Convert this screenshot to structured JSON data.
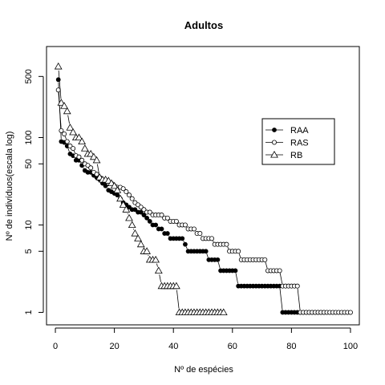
{
  "chart_data": {
    "type": "scatter",
    "title": "Adultos",
    "xlabel": "Nº de espécies",
    "ylabel": "Nº de indivíduos(escala log)",
    "y_scale": "log",
    "xlim": [
      -3,
      103
    ],
    "ylim": [
      0.72,
      1100
    ],
    "xticks": [
      0,
      20,
      40,
      60,
      80,
      100
    ],
    "yticks": [
      1,
      5,
      10,
      50,
      100,
      500
    ],
    "grid": false,
    "legend_position": "right",
    "series": [
      {
        "name": "RAA",
        "marker": "filled-circle",
        "style": "line-and-points",
        "values": [
          460,
          90,
          88,
          80,
          65,
          62,
          55,
          55,
          48,
          42,
          40,
          40,
          37,
          35,
          33,
          30,
          28,
          25,
          24,
          23,
          22,
          20,
          18,
          17,
          16,
          15,
          15,
          14,
          14,
          13,
          12,
          11,
          10,
          10,
          9,
          9,
          8,
          8,
          7,
          7,
          7,
          7,
          7,
          6,
          5,
          5,
          5,
          5,
          5,
          5,
          5,
          4,
          4,
          4,
          4,
          3,
          3,
          3,
          3,
          3,
          3,
          2,
          2,
          2,
          2,
          2,
          2,
          2,
          2,
          2,
          2,
          2,
          2,
          2,
          2,
          2,
          1,
          1,
          1,
          1,
          1,
          1,
          1,
          1,
          1,
          1,
          1,
          1,
          1,
          1,
          1
        ]
      },
      {
        "name": "RAS",
        "marker": "open-circle",
        "style": "line-and-points",
        "values": [
          350,
          120,
          110,
          90,
          80,
          75,
          62,
          60,
          55,
          50,
          48,
          45,
          40,
          38,
          35,
          33,
          32,
          30,
          30,
          28,
          27,
          27,
          26,
          24,
          22,
          20,
          18,
          17,
          16,
          15,
          14,
          14,
          13,
          13,
          13,
          13,
          12,
          12,
          11,
          11,
          11,
          10,
          10,
          10,
          9,
          9,
          9,
          8,
          8,
          7,
          7,
          7,
          7,
          6,
          6,
          6,
          6,
          6,
          5,
          5,
          5,
          5,
          4,
          4,
          4,
          4,
          4,
          4,
          4,
          4,
          4,
          3,
          3,
          3,
          3,
          3,
          2,
          2,
          2,
          2,
          2,
          2,
          1,
          1,
          1,
          1,
          1,
          1,
          1,
          1,
          1,
          1,
          1,
          1,
          1,
          1,
          1,
          1,
          1,
          1
        ]
      },
      {
        "name": "RB",
        "marker": "open-triangle",
        "style": "line-and-points",
        "values": [
          650,
          250,
          230,
          200,
          130,
          115,
          100,
          100,
          90,
          75,
          65,
          65,
          60,
          55,
          35,
          33,
          33,
          32,
          30,
          28,
          25,
          20,
          17,
          15,
          12,
          10,
          8,
          7,
          6,
          5,
          5,
          4,
          4,
          4,
          3,
          2,
          2,
          2,
          2,
          2,
          2,
          1,
          1,
          1,
          1,
          1,
          1,
          1,
          1,
          1,
          1,
          1,
          1,
          1,
          1,
          1,
          1
        ]
      }
    ]
  }
}
